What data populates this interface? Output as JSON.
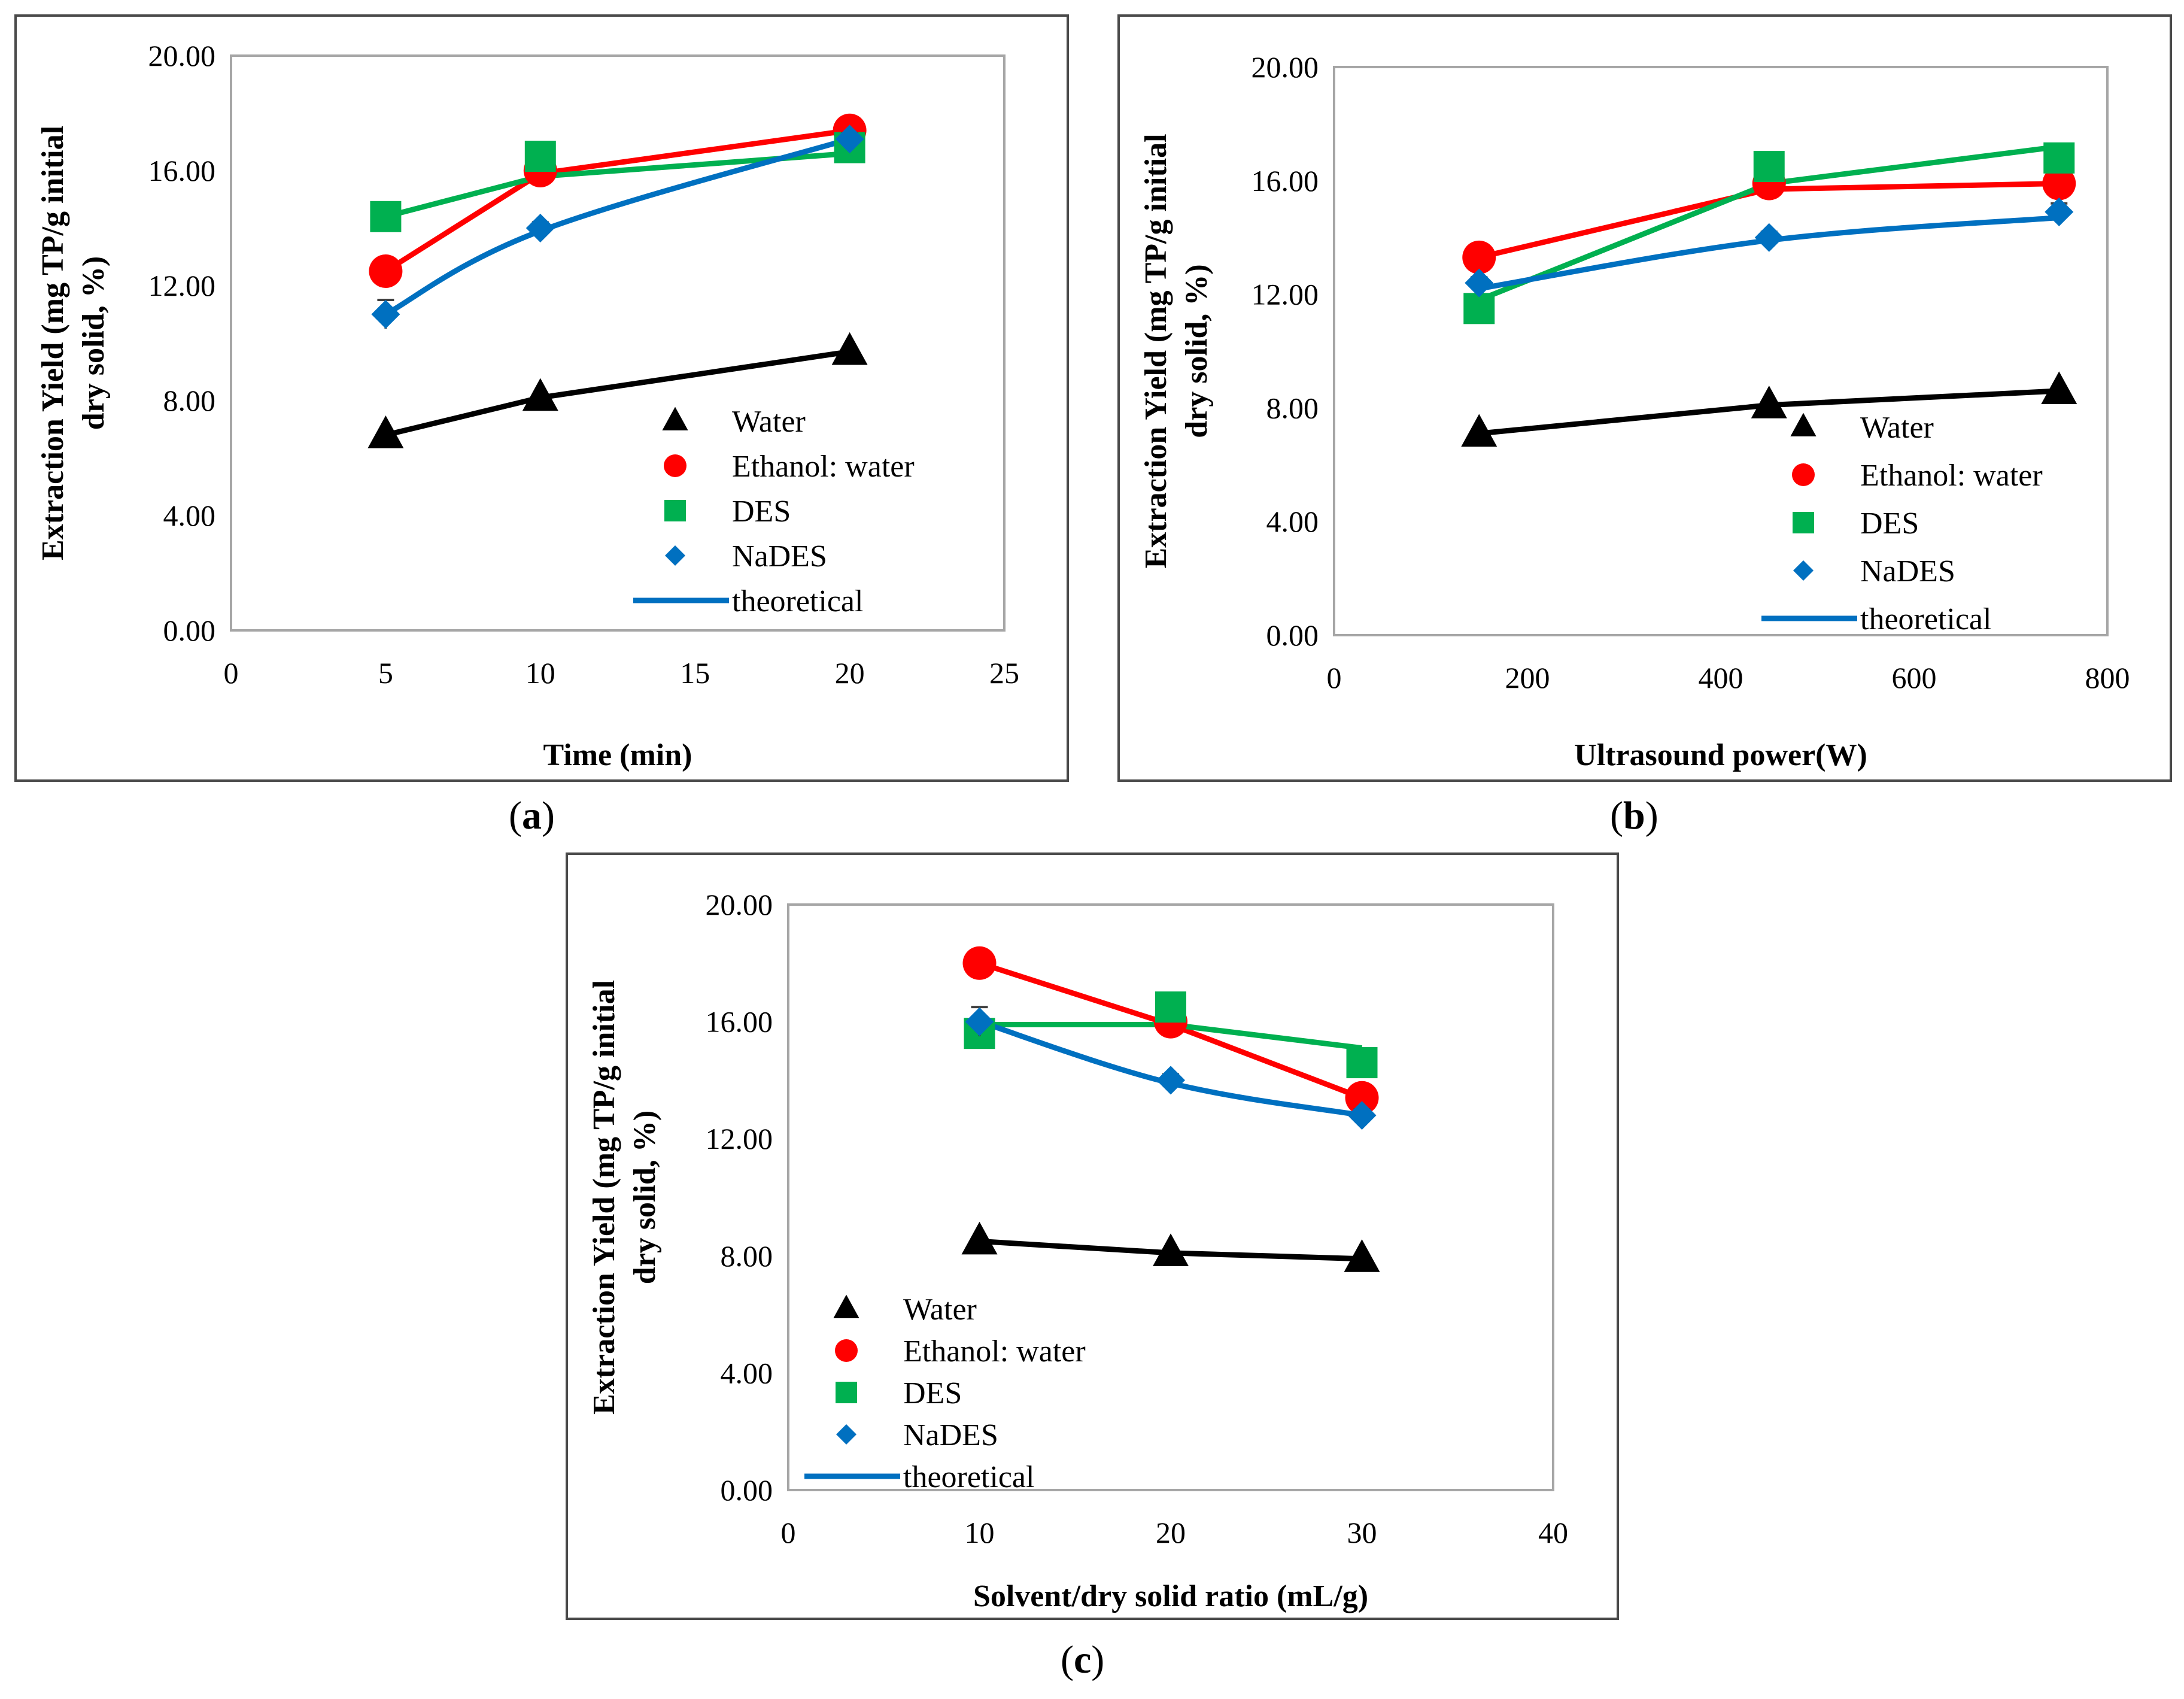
{
  "series_styles": [
    {
      "name": "Water",
      "marker": "triangle",
      "color": "#000000"
    },
    {
      "name": "Ethanol: water",
      "marker": "circle",
      "color": "#ff0000"
    },
    {
      "name": "DES",
      "marker": "square",
      "color": "#00b050"
    },
    {
      "name": "NaDES",
      "marker": "diamond",
      "color": "#0070c0"
    }
  ],
  "theoretical_color": "#0070c0",
  "chart_data": [
    {
      "id": "a",
      "type": "line",
      "caption_prefix": "(",
      "caption_letter": "a",
      "caption_suffix": ")",
      "xlabel": "Time (min)",
      "ylabel_line1": "Extraction Yield (mg TP/g initial",
      "ylabel_line2": "dry solid, %)",
      "xlim": [
        0,
        25
      ],
      "ylim": [
        0,
        20
      ],
      "xticks": [
        "0",
        "5",
        "10",
        "15",
        "20",
        "25"
      ],
      "yticks": [
        "0.00",
        "4.00",
        "8.00",
        "12.00",
        "16.00",
        "20.00"
      ],
      "x": [
        5,
        10,
        20
      ],
      "series": [
        {
          "name": "Water",
          "values": [
            6.8,
            8.1,
            9.7
          ],
          "fit": [
            6.8,
            8.1,
            9.7
          ]
        },
        {
          "name": "Ethanol: water",
          "values": [
            12.5,
            16.0,
            17.4
          ],
          "fit": [
            12.5,
            15.9,
            17.4
          ]
        },
        {
          "name": "DES",
          "values": [
            14.4,
            16.5,
            16.8
          ],
          "fit": [
            14.4,
            15.8,
            16.6
          ]
        },
        {
          "name": "NaDES",
          "values": [
            11.0,
            14.0,
            17.1
          ],
          "fit": [
            11.0,
            13.9,
            17.1
          ],
          "error": [
            0.5,
            0.2,
            0.2
          ]
        }
      ],
      "legend": [
        "Water",
        "Ethanol: water",
        "DES",
        "NaDES",
        "theoretical"
      ]
    },
    {
      "id": "b",
      "type": "line",
      "caption_prefix": "(",
      "caption_letter": "b",
      "caption_suffix": ")",
      "xlabel": "Ultrasound power(W)",
      "ylabel_line1": "Extraction Yield (mg TP/g initial",
      "ylabel_line2": "dry solid, %)",
      "xlim": [
        0,
        800
      ],
      "ylim": [
        0,
        20
      ],
      "xticks": [
        "0",
        "200",
        "400",
        "600",
        "800"
      ],
      "yticks": [
        "0.00",
        "4.00",
        "8.00",
        "12.00",
        "16.00",
        "20.00"
      ],
      "x": [
        150,
        450,
        750
      ],
      "series": [
        {
          "name": "Water",
          "values": [
            7.1,
            8.1,
            8.6
          ],
          "fit": [
            7.1,
            8.1,
            8.6
          ]
        },
        {
          "name": "Ethanol: water",
          "values": [
            13.3,
            15.9,
            15.9
          ],
          "fit": [
            13.3,
            15.7,
            15.9
          ]
        },
        {
          "name": "DES",
          "values": [
            11.5,
            16.5,
            16.8
          ],
          "fit": [
            11.8,
            15.9,
            17.2
          ]
        },
        {
          "name": "NaDES",
          "values": [
            12.4,
            14.0,
            14.9
          ],
          "fit": [
            12.2,
            13.9,
            14.7
          ],
          "error": [
            0.2,
            0.2,
            0.3
          ]
        }
      ],
      "legend": [
        "Water",
        "Ethanol: water",
        "DES",
        "NaDES",
        "theoretical"
      ]
    },
    {
      "id": "c",
      "type": "line",
      "caption_prefix": "(",
      "caption_letter": "c",
      "caption_suffix": ")",
      "xlabel": "Solvent/dry solid ratio (mL/g)",
      "ylabel_line1": "Extraction Yield (mg TP/g initial",
      "ylabel_line2": "dry solid, %)",
      "xlim": [
        0,
        40
      ],
      "ylim": [
        0,
        20
      ],
      "xticks": [
        "0",
        "10",
        "20",
        "30",
        "40"
      ],
      "yticks": [
        "0.00",
        "4.00",
        "8.00",
        "12.00",
        "16.00",
        "20.00"
      ],
      "x": [
        10,
        20,
        30
      ],
      "series": [
        {
          "name": "Water",
          "values": [
            8.5,
            8.1,
            7.9
          ],
          "fit": [
            8.5,
            8.1,
            7.9
          ]
        },
        {
          "name": "Ethanol: water",
          "values": [
            18.0,
            16.0,
            13.4
          ],
          "fit": [
            18.0,
            15.9,
            13.4
          ]
        },
        {
          "name": "DES",
          "values": [
            15.6,
            16.5,
            14.6
          ],
          "fit": [
            15.9,
            15.9,
            15.1
          ]
        },
        {
          "name": "NaDES",
          "values": [
            16.0,
            14.0,
            12.8
          ],
          "fit": [
            16.0,
            13.9,
            12.8
          ],
          "error": [
            0.5,
            0.2,
            0.2
          ]
        }
      ],
      "legend": [
        "Water",
        "Ethanol: water",
        "DES",
        "NaDES",
        "theoretical"
      ]
    }
  ]
}
